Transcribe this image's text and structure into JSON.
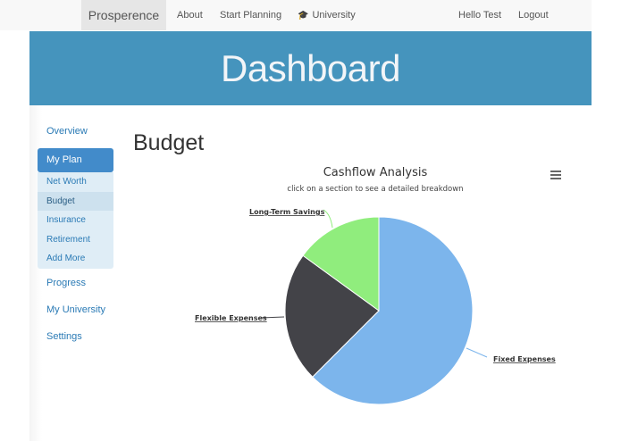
{
  "navbar": {
    "brand": "Prosperence",
    "links": [
      {
        "label": "About"
      },
      {
        "label": "Start Planning"
      },
      {
        "label": "University",
        "icon": "graduation-cap-icon"
      }
    ],
    "user_greeting": "Hello Test",
    "logout": "Logout"
  },
  "banner": {
    "title": "Dashboard"
  },
  "sidebar": {
    "items": [
      {
        "label": "Overview"
      },
      {
        "label": "My Plan",
        "active": true
      },
      {
        "label": "Progress"
      },
      {
        "label": "My University"
      },
      {
        "label": "Settings"
      }
    ],
    "sub_items": [
      {
        "label": "Net Worth"
      },
      {
        "label": "Budget",
        "selected": true
      },
      {
        "label": "Insurance"
      },
      {
        "label": "Retirement"
      },
      {
        "label": "Add More"
      }
    ]
  },
  "main": {
    "title": "Budget"
  },
  "chart_data": {
    "type": "pie",
    "title": "Cashflow Analysis",
    "subtitle": "click on a section to see a detailed breakdown",
    "categories": [
      "Fixed Expenses",
      "Flexible Expenses",
      "Long-Term Savings"
    ],
    "values": [
      62.5,
      22.5,
      15
    ],
    "colors": [
      "#7cb5ec",
      "#434348",
      "#90ed7d"
    ],
    "legend": false,
    "menu_icon": "hamburger-menu-icon"
  }
}
